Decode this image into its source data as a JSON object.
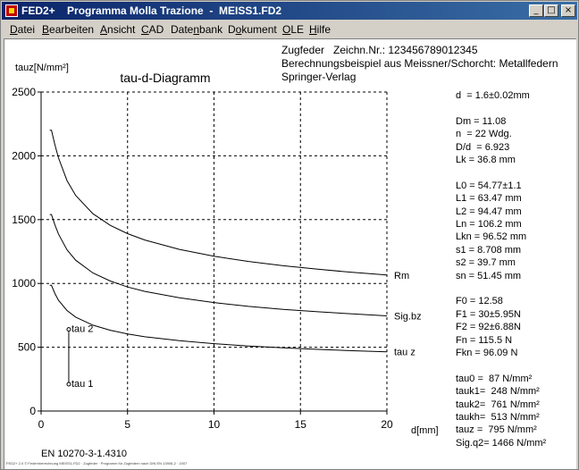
{
  "window": {
    "title": "FED2+    Programma Molla Trazione  -  MEISS1.FD2",
    "minimize_label": "_",
    "maximize_label": "□",
    "close_label": "×"
  },
  "menu": [
    {
      "label": "Datei",
      "mnemonic": "D"
    },
    {
      "label": "Bearbeiten",
      "mnemonic": "B"
    },
    {
      "label": "Ansicht",
      "mnemonic": "A"
    },
    {
      "label": "CAD",
      "mnemonic": "C"
    },
    {
      "label": "Datenbank",
      "mnemonic": "n"
    },
    {
      "label": "Dokument",
      "mnemonic": "o"
    },
    {
      "label": "OLE",
      "mnemonic": "O"
    },
    {
      "label": "Hilfe",
      "mnemonic": "H"
    }
  ],
  "header": {
    "line1": "Zugfeder   Zeichn.Nr.: 123456789012345",
    "line2": "Berechnungsbeispiel aus Meissner/Schorcht: Metallfedern",
    "line3": "Springer-Verlag"
  },
  "results": [
    "d  = 1.6±0.02mm",
    "",
    "Dm = 11.08",
    "n  = 22 Wdg.",
    "D/d  = 6.923",
    "Lk = 36.8 mm",
    "",
    "L0 = 54.77±1.1",
    "L1 = 63.47 mm",
    "L2 = 94.47 mm",
    "Ln = 106.2 mm",
    "Lkn = 96.52 mm",
    "s1 = 8.708 mm",
    "s2 = 39.7 mm",
    "sn = 51.45 mm",
    "",
    "F0 = 12.58",
    "F1 = 30±5.95N",
    "F2 = 92±6.88N",
    "Fn = 115.5 N",
    "Fkn = 96.09 N",
    "",
    "tau0 =  87 N/mm²",
    "tauk1=  248 N/mm²",
    "tauk2=  761 N/mm²",
    "taukh=  513 N/mm²",
    "tauz =  795 N/mm²",
    "Sig.q2= 1466 N/mm²"
  ],
  "footer": {
    "material": "EN 10270-3-1.4310",
    "fine_print": "FED2+ 2.0 © Federnberechnung MEISS1.FD2 · Zugfeder · Programm für Zugfedern nach DIN EN 13906-2 · 2007"
  },
  "chart_data": {
    "type": "line",
    "title": "tau-d-Diagramm",
    "xlabel": "d[mm]",
    "ylabel": "tauz[N/mm²]",
    "xlim": [
      0,
      20
    ],
    "ylim": [
      0,
      2500
    ],
    "xticks": [
      0,
      5,
      10,
      15,
      20
    ],
    "yticks": [
      0,
      500,
      1000,
      1500,
      2000,
      2500
    ],
    "grid": "dashed",
    "series": [
      {
        "name": "Rm",
        "x": [
          0.5,
          0.6,
          0.8,
          1,
          1.5,
          2,
          3,
          4,
          5,
          6,
          8,
          10,
          12,
          14,
          16,
          18,
          20
        ],
        "values": [
          2200,
          2200,
          2085,
          1985,
          1806,
          1690,
          1546,
          1455,
          1390,
          1340,
          1267,
          1213,
          1172,
          1139,
          1111,
          1087,
          1066
        ]
      },
      {
        "name": "Sig.bz",
        "x": [
          0.5,
          0.6,
          0.8,
          1,
          1.5,
          2,
          3,
          4,
          5,
          6,
          8,
          10,
          12,
          14,
          16,
          18,
          20
        ],
        "values": [
          1540,
          1540,
          1458,
          1388,
          1263,
          1182,
          1082,
          1019,
          972,
          938,
          888,
          850,
          820,
          797,
          778,
          761,
          746
        ]
      },
      {
        "name": "tau z",
        "x": [
          0.5,
          0.6,
          0.8,
          1,
          1.5,
          2,
          3,
          4,
          5,
          6,
          8,
          10,
          12,
          14,
          16,
          18,
          20
        ],
        "values": [
          985,
          985,
          920,
          868,
          788,
          736,
          673,
          633,
          604,
          582,
          551,
          528,
          510,
          495,
          483,
          473,
          464
        ]
      }
    ],
    "markers": [
      {
        "label": "tau 2",
        "x": 1.6,
        "y": 640
      },
      {
        "label": "tau 1",
        "x": 1.6,
        "y": 210
      }
    ]
  }
}
